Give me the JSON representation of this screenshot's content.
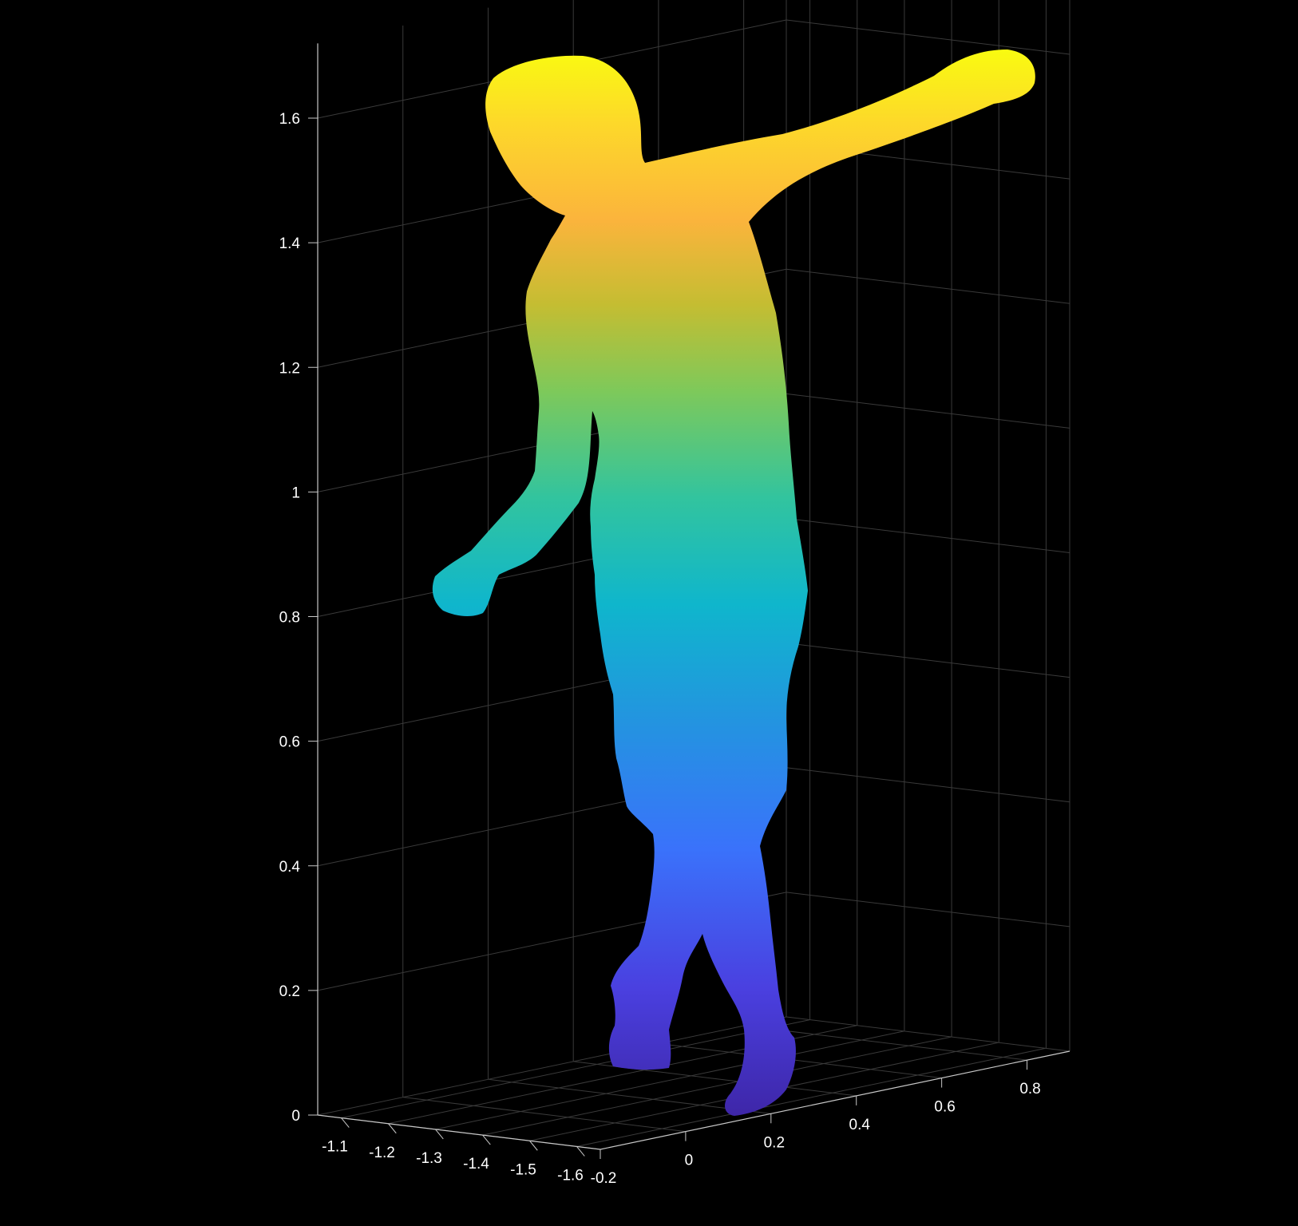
{
  "chart_data": {
    "type": "scatter",
    "subtype": "3d-point-cloud",
    "colormap": "parula",
    "background_color": "#000000",
    "grid": true,
    "grid_color": "#3a3a3a",
    "axis_color": "#c8c8c8",
    "text_color": "#ffffff",
    "x_axis": {
      "ticks": [
        -1.1,
        -1.2,
        -1.3,
        -1.4,
        -1.5,
        -1.6
      ],
      "tick_labels": [
        "-1.1",
        "-1.2",
        "-1.3",
        "-1.4",
        "-1.5",
        "-1.6"
      ],
      "range": [
        -1.65,
        -1.05
      ]
    },
    "y_axis": {
      "ticks": [
        -0.2,
        0,
        0.2,
        0.4,
        0.6,
        0.8
      ],
      "tick_labels": [
        "-0.2",
        "0",
        "0.2",
        "0.4",
        "0.6",
        "0.8"
      ],
      "range": [
        -0.2,
        0.9
      ]
    },
    "z_axis": {
      "ticks": [
        0,
        0.2,
        0.4,
        0.6,
        0.8,
        1.0,
        1.2,
        1.4,
        1.6
      ],
      "tick_labels": [
        "0",
        "0.2",
        "0.4",
        "0.6",
        "0.8",
        "1",
        "1.2",
        "1.4",
        "1.6"
      ],
      "range": [
        0,
        1.7
      ]
    },
    "color_by": "z",
    "color_range": [
      0.03,
      1.72
    ],
    "point_cloud": {
      "description_only": false,
      "z_min": 0.03,
      "z_max": 1.72
    }
  }
}
